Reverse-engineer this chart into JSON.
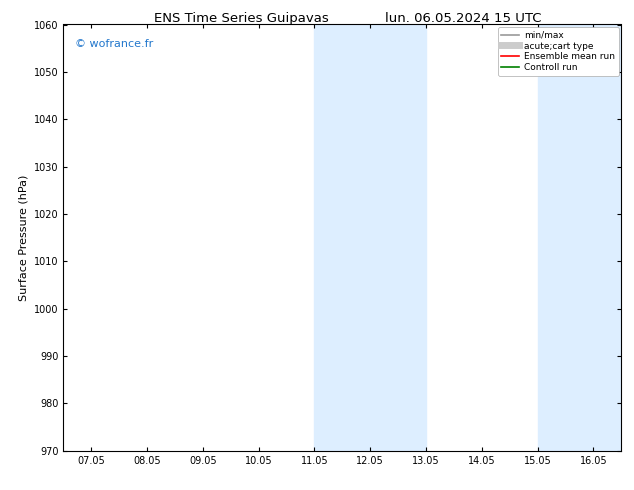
{
  "title_left": "ENS Time Series Guipavas",
  "title_right": "lun. 06.05.2024 15 UTC",
  "ylabel": "Surface Pressure (hPa)",
  "ylim": [
    970,
    1060
  ],
  "yticks": [
    970,
    980,
    990,
    1000,
    1010,
    1020,
    1030,
    1040,
    1050,
    1060
  ],
  "xtick_labels": [
    "07.05",
    "08.05",
    "09.05",
    "10.05",
    "11.05",
    "12.05",
    "13.05",
    "14.05",
    "15.05",
    "16.05"
  ],
  "xtick_positions": [
    0,
    1,
    2,
    3,
    4,
    5,
    6,
    7,
    8,
    9
  ],
  "xlim": [
    -0.5,
    9.5
  ],
  "shaded_bands": [
    {
      "xmin": 4,
      "xmax": 6,
      "color": "#ddeeff"
    },
    {
      "xmin": 8,
      "xmax": 9.5,
      "color": "#ddeeff"
    }
  ],
  "watermark": "© wofrance.fr",
  "watermark_color": "#2277cc",
  "legend_entries": [
    {
      "label": "min/max",
      "color": "#999999",
      "lw": 1.2
    },
    {
      "label": "acute;cart type",
      "color": "#cccccc",
      "lw": 5.0
    },
    {
      "label": "Ensemble mean run",
      "color": "red",
      "lw": 1.2
    },
    {
      "label": "Controll run",
      "color": "green",
      "lw": 1.2
    }
  ],
  "background_color": "#ffffff",
  "plot_bg_color": "#ffffff",
  "border_color": "#000000",
  "title_fontsize": 9.5,
  "tick_fontsize": 7,
  "ylabel_fontsize": 8,
  "legend_fontsize": 6.5
}
